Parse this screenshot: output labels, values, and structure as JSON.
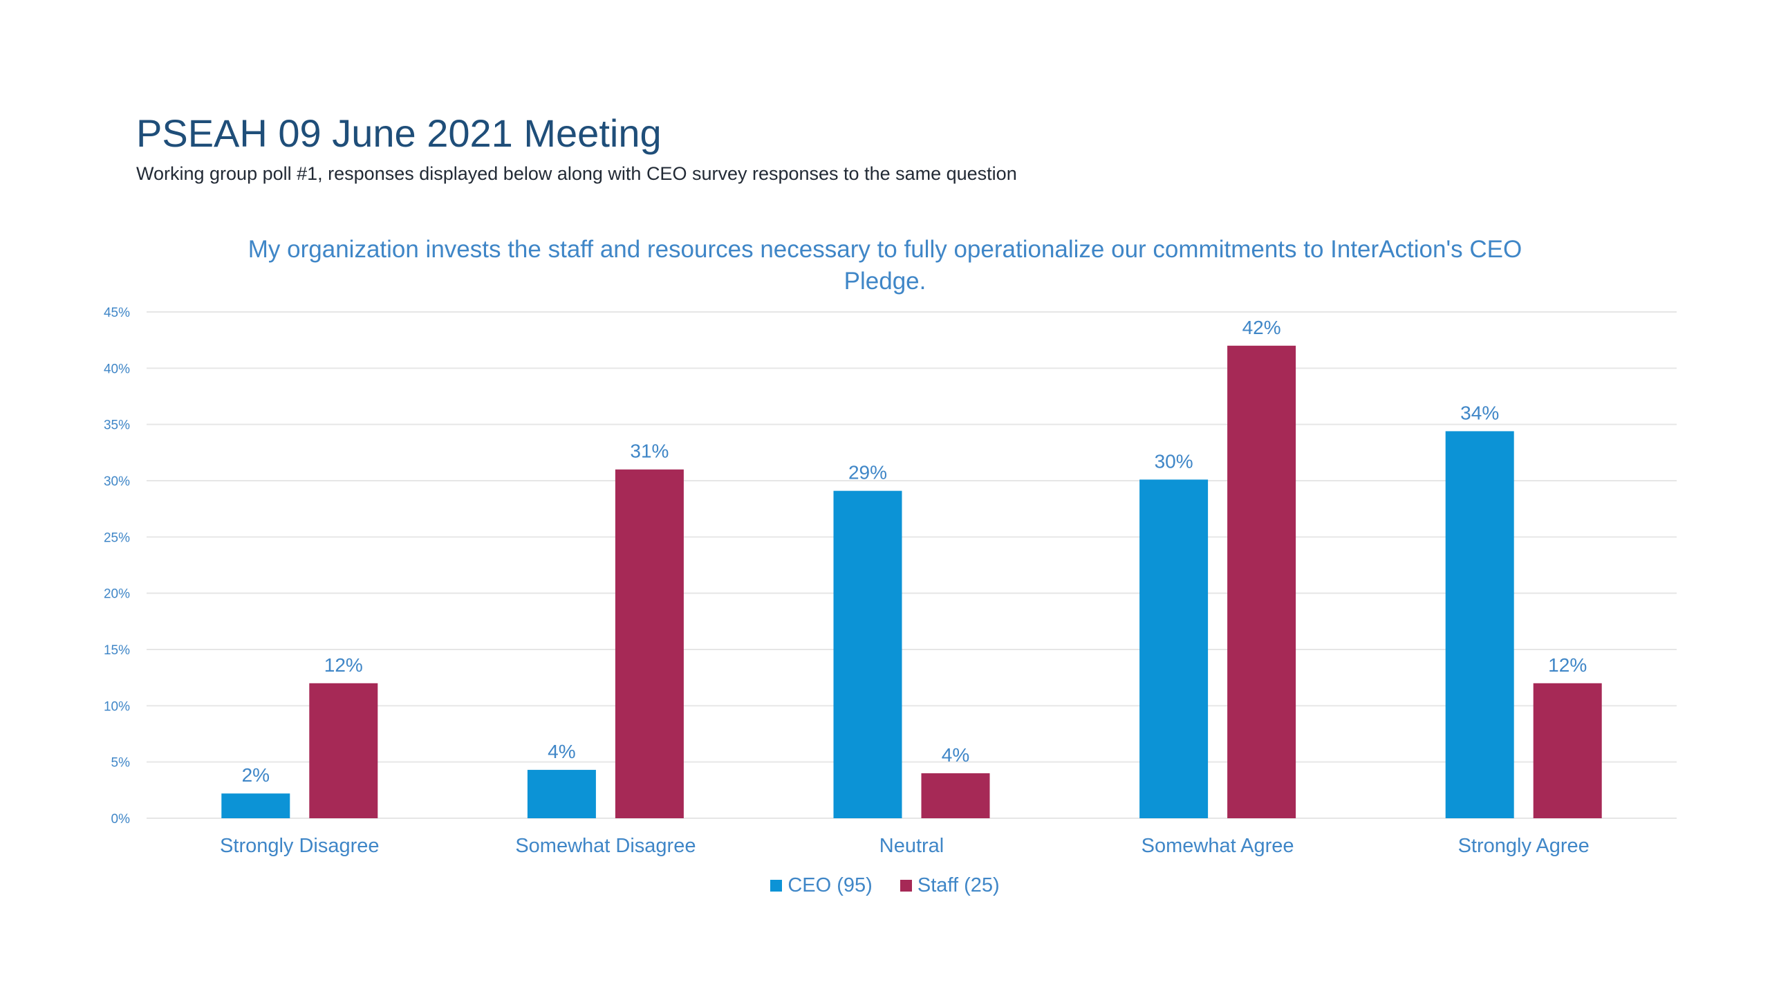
{
  "header": {
    "title": "PSEAH 09 June 2021 Meeting",
    "subtitle": "Working group poll #1, responses displayed below along with CEO survey responses to the same question"
  },
  "colors": {
    "ceo": "#0c93d6",
    "staff": "#a62956",
    "grid": "#e6e6e6",
    "label": "#3f86c7"
  },
  "chart_data": {
    "type": "bar",
    "title": "My organization invests the staff and resources necessary to fully operationalize our commitments to InterAction's CEO Pledge.",
    "categories": [
      "Strongly Disagree",
      "Somewhat Disagree",
      "Neutral",
      "Somewhat Agree",
      "Strongly Agree"
    ],
    "series": [
      {
        "name": "CEO (95)",
        "values": [
          2.2,
          4.3,
          29.1,
          30.1,
          34.4
        ],
        "labels": [
          "2%",
          "4%",
          "29%",
          "30%",
          "34%"
        ]
      },
      {
        "name": "Staff (25)",
        "values": [
          12,
          31,
          4,
          42,
          12
        ],
        "labels": [
          "12%",
          "31%",
          "4%",
          "42%",
          "12%"
        ]
      }
    ],
    "yticks": [
      "0%",
      "5%",
      "10%",
      "15%",
      "20%",
      "25%",
      "30%",
      "35%",
      "40%",
      "45%"
    ],
    "ylim": [
      0,
      45
    ],
    "xlabel": "",
    "ylabel": "",
    "grid": true,
    "legend": "bottom"
  }
}
